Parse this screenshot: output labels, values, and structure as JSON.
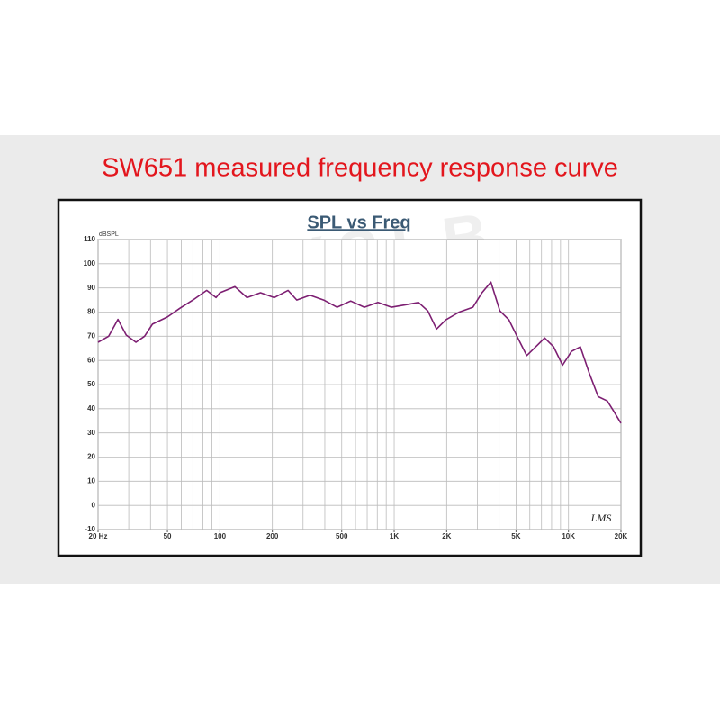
{
  "chart_data": {
    "type": "line",
    "title": "SW651 measured frequency response curve",
    "subtitle": "SPL vs Freq",
    "y_label": "dBSPL",
    "watermark": "KYYSLB",
    "logo": "LMS",
    "x_log": true,
    "grid": true,
    "xlim": [
      20,
      20000
    ],
    "ylim": [
      -10,
      110
    ],
    "xticks": [
      {
        "value": 20,
        "label": "20 Hz"
      },
      50,
      100,
      200,
      500,
      {
        "value": 1000,
        "label": "1K"
      },
      {
        "value": 2000,
        "label": "2K"
      },
      {
        "value": 5000,
        "label": "5K"
      },
      {
        "value": 10000,
        "label": "10K"
      },
      {
        "value": 20000,
        "label": "20K"
      }
    ],
    "yticks": [
      -10,
      0,
      10,
      20,
      30,
      40,
      50,
      60,
      70,
      80,
      90,
      100,
      110
    ],
    "xgrid": [
      20,
      30,
      40,
      50,
      60,
      70,
      80,
      90,
      100,
      200,
      300,
      400,
      500,
      600,
      700,
      800,
      900,
      1000,
      2000,
      3000,
      4000,
      5000,
      6000,
      7000,
      8000,
      9000,
      10000,
      20000
    ],
    "x": [
      20,
      23,
      26,
      29,
      33,
      37,
      41,
      50,
      59,
      70,
      84,
      95,
      100,
      122,
      143,
      171,
      205,
      246,
      276,
      329,
      394,
      470,
      563,
      674,
      807,
      966,
      1160,
      1380,
      1560,
      1750,
      1980,
      2360,
      2830,
      3190,
      3590,
      4040,
      4550,
      5120,
      5760,
      6490,
      7300,
      8220,
      9250,
      10400,
      11700,
      13200,
      14800,
      16700,
      18000,
      20000
    ],
    "series": [
      {
        "color": "#7d1f72",
        "values": [
          67.5,
          70,
          77,
          70.5,
          67.5,
          70,
          75,
          78,
          81.6,
          85,
          89,
          86,
          88,
          90.5,
          86,
          88,
          86,
          89,
          85,
          87,
          85,
          82,
          84.6,
          82,
          84,
          82,
          83,
          84,
          80.5,
          73,
          76.8,
          80,
          82,
          88,
          92.4,
          80.5,
          76.8,
          69.3,
          62,
          65.6,
          69.3,
          65.6,
          58,
          63.7,
          65.6,
          54.4,
          45,
          43.2,
          39.5,
          34
        ]
      }
    ]
  }
}
